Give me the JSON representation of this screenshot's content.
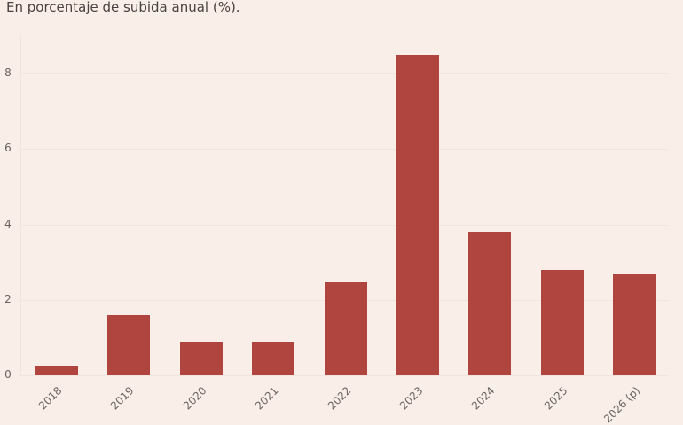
{
  "header": {
    "subtitle": "En porcentaje de subida anual (%)."
  },
  "colors": {
    "bar": "#b04540",
    "background": "#f9efe8",
    "grid": "#f0e4dd",
    "text": "#6b6361"
  },
  "axis": {
    "y_ticks": [
      "0",
      "2",
      "4",
      "6",
      "8"
    ]
  },
  "chart_data": {
    "type": "bar",
    "title": "",
    "subtitle": "En porcentaje de subida anual (%).",
    "categories": [
      "2018",
      "2019",
      "2020",
      "2021",
      "2022",
      "2023",
      "2024",
      "2025",
      "2026 (p)"
    ],
    "values": [
      0.25,
      1.6,
      0.9,
      0.9,
      2.5,
      8.5,
      3.8,
      2.8,
      2.7
    ],
    "xlabel": "",
    "ylabel": "",
    "ylim": [
      0,
      9
    ],
    "y_ticks": [
      0,
      2,
      4,
      6,
      8
    ],
    "grid": true,
    "legend": null
  }
}
